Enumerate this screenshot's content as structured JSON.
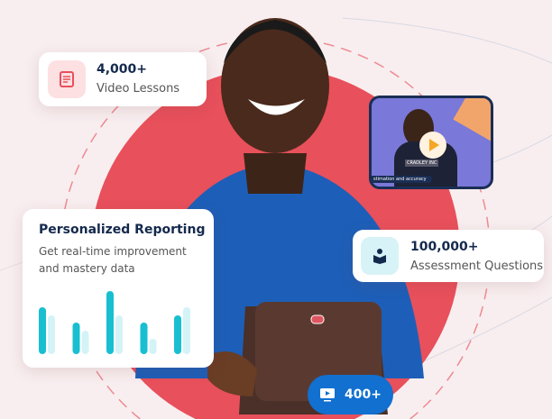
{
  "colors": {
    "background": "#f8eeef",
    "circle": "#e8505b",
    "navy": "#14294d",
    "teal": "#18bfd0",
    "teal_light": "#d4f3f7",
    "blue_pill": "#1170d0"
  },
  "video_lessons": {
    "count": "4,000+",
    "label": "Video Lessons",
    "icon": "document-icon"
  },
  "video_preview": {
    "caption": "stimation and accuracy",
    "shirt_text": "CRADLEY INC",
    "icon": "play-icon"
  },
  "reporting": {
    "title": "Personalized Reporting",
    "description": "Get real-time improvement and mastery data",
    "chart_data": {
      "type": "bar",
      "series": [
        {
          "values": [
            52,
            35,
            70,
            35,
            43
          ]
        },
        {
          "values": [
            43,
            26,
            43,
            17,
            52
          ]
        }
      ]
    }
  },
  "assessment": {
    "count": "100,000+",
    "label": "Assessment Questions",
    "icon": "reading-person-icon"
  },
  "video_count_pill": {
    "count": "400+",
    "icon": "video-screen-icon"
  }
}
